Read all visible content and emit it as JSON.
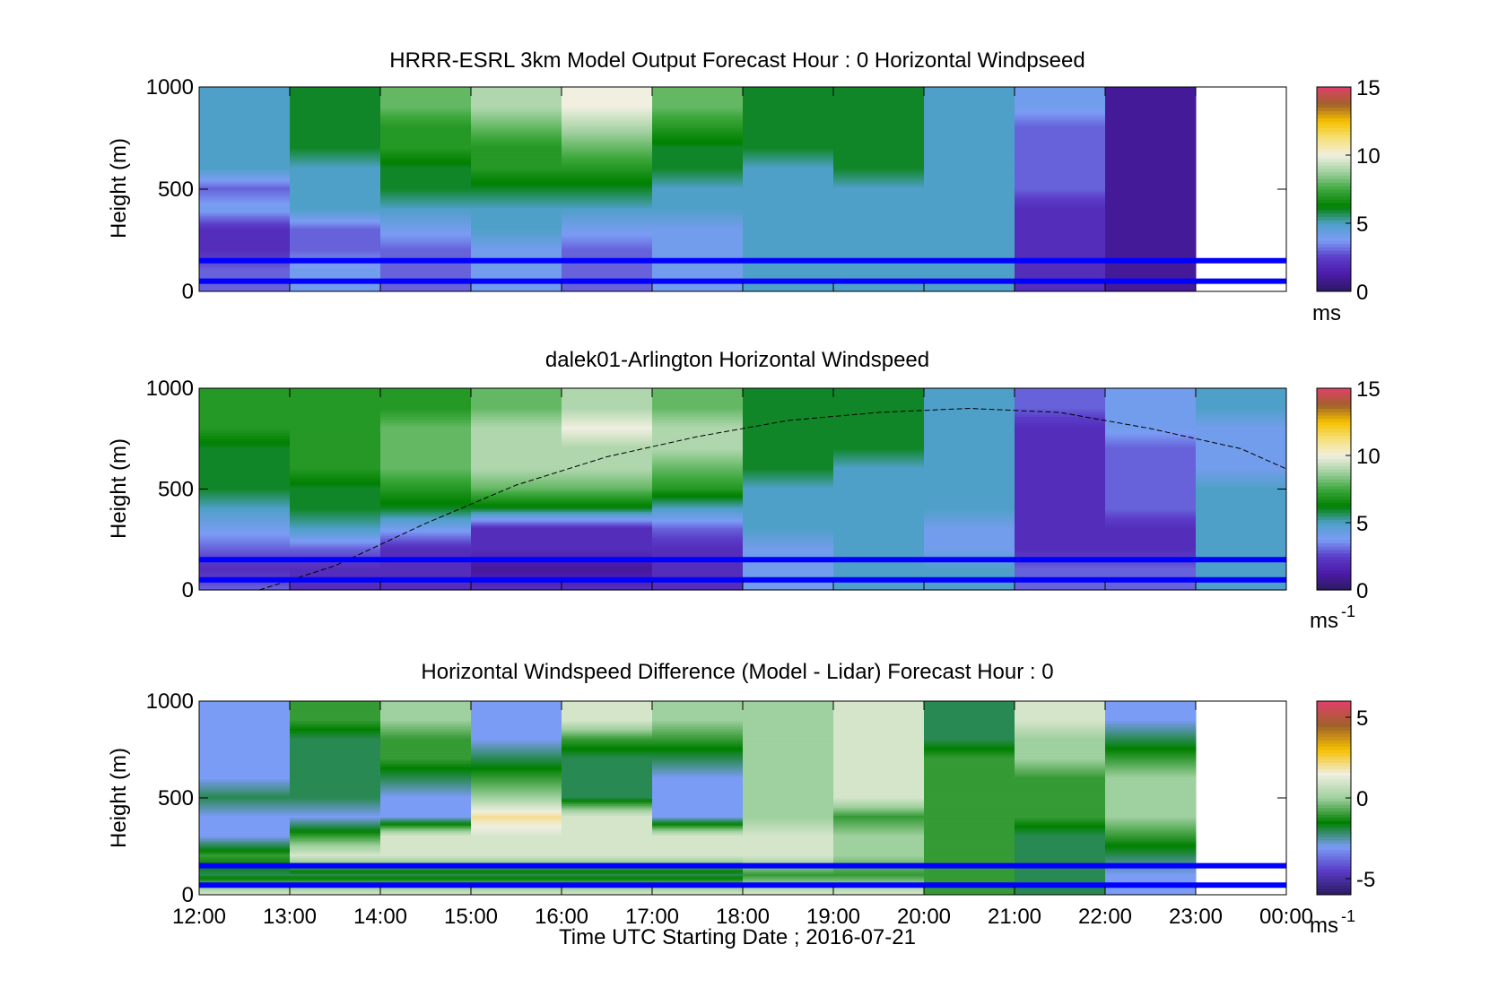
{
  "xlabel": "Time UTC  Starting Date ; 2016-07-21",
  "x_ticks": [
    "12:00",
    "13:00",
    "14:00",
    "15:00",
    "16:00",
    "17:00",
    "18:00",
    "19:00",
    "20:00",
    "21:00",
    "22:00",
    "23:00",
    "00:00"
  ],
  "colors": {
    "reference_lines": "#0000ff",
    "colormap_speed": [
      "#2a1a5e",
      "#4b1aa8",
      "#5a3cc8",
      "#7b9cf5",
      "#4fa0c8",
      "#008000",
      "#3da83d",
      "#9fd09f",
      "#f0efe0",
      "#f5e07a",
      "#f5c000",
      "#a0622a",
      "#e0406a"
    ],
    "colormap_diff": [
      "#2a1a5e",
      "#5a3cc8",
      "#7b9cf5",
      "#008000",
      "#9fd09f",
      "#f0efe0",
      "#f5c000",
      "#a0622a",
      "#e0406a"
    ]
  },
  "chart_data": [
    {
      "type": "heatmap",
      "title": "HRRR-ESRL 3km Model Output   Forecast Hour : 0 Horizontal Windpseed",
      "ylabel": "Height (m)",
      "xlim": [
        "12:00",
        "00:00"
      ],
      "ylim": [
        0,
        1000
      ],
      "y_ticks": [
        "0",
        "500",
        "1000"
      ],
      "colorbar": {
        "min": 0,
        "max": 15,
        "ticks": [
          "0",
          "5",
          "10",
          "15"
        ],
        "unit": "ms"
      },
      "reference_lines_m": [
        50,
        150
      ],
      "columns": [
        {
          "start": "12:00",
          "end": "13:00",
          "profile_ms": [
            3,
            3,
            2,
            2,
            4,
            3,
            5,
            5,
            5,
            5
          ]
        },
        {
          "start": "13:00",
          "end": "14:00",
          "profile_ms": [
            4,
            4,
            3,
            3,
            5,
            5,
            5,
            6,
            6,
            6
          ]
        },
        {
          "start": "14:00",
          "end": "15:00",
          "profile_ms": [
            3,
            3,
            3,
            4,
            5,
            6,
            6,
            7,
            7,
            8
          ]
        },
        {
          "start": "15:00",
          "end": "16:00",
          "profile_ms": [
            4,
            4,
            4,
            5,
            5,
            6,
            7,
            7,
            8,
            9
          ]
        },
        {
          "start": "16:00",
          "end": "17:00",
          "profile_ms": [
            3,
            3,
            3,
            4,
            5,
            6,
            7,
            8,
            9,
            10
          ]
        },
        {
          "start": "17:00",
          "end": "18:00",
          "profile_ms": [
            4,
            4,
            4,
            4,
            5,
            5,
            6,
            6,
            7,
            8
          ]
        },
        {
          "start": "18:00",
          "end": "19:00",
          "profile_ms": [
            5,
            5,
            5,
            5,
            5,
            5,
            5,
            6,
            6,
            6
          ]
        },
        {
          "start": "19:00",
          "end": "20:00",
          "profile_ms": [
            5,
            5,
            5,
            5,
            5,
            5,
            6,
            6,
            6,
            6
          ]
        },
        {
          "start": "20:00",
          "end": "21:00",
          "profile_ms": [
            5,
            5,
            5,
            5,
            5,
            5,
            5,
            5,
            5,
            5
          ]
        },
        {
          "start": "21:00",
          "end": "22:00",
          "profile_ms": [
            2,
            2,
            2,
            2,
            2,
            3,
            3,
            3,
            3,
            4
          ]
        },
        {
          "start": "22:00",
          "end": "23:00",
          "profile_ms": [
            1,
            1,
            1,
            1,
            1,
            1,
            1,
            1,
            1,
            1
          ]
        }
      ]
    },
    {
      "type": "heatmap",
      "title": "dalek01-Arlington  Horizontal Windspeed",
      "ylabel": "Height (m)",
      "xlim": [
        "12:00",
        "00:00"
      ],
      "ylim": [
        0,
        1000
      ],
      "y_ticks": [
        "0",
        "500",
        "1000"
      ],
      "colorbar": {
        "min": 0,
        "max": 15,
        "ticks": [
          "0",
          "5",
          "10",
          "15"
        ],
        "unit": "ms",
        "unit_exp": "-1"
      },
      "reference_lines_m": [
        50,
        150
      ],
      "overlay_curve_m": [
        {
          "t": "12:40",
          "z": 0
        },
        {
          "t": "13:30",
          "z": 120
        },
        {
          "t": "14:30",
          "z": 330
        },
        {
          "t": "15:30",
          "z": 520
        },
        {
          "t": "16:30",
          "z": 660
        },
        {
          "t": "17:30",
          "z": 760
        },
        {
          "t": "18:30",
          "z": 840
        },
        {
          "t": "19:30",
          "z": 880
        },
        {
          "t": "20:30",
          "z": 900
        },
        {
          "t": "21:30",
          "z": 880
        },
        {
          "t": "22:30",
          "z": 800
        },
        {
          "t": "23:30",
          "z": 700
        },
        {
          "t": "00:00",
          "z": 600
        }
      ],
      "columns": [
        {
          "start": "12:00",
          "end": "13:00",
          "profile_ms": [
            3,
            2,
            3,
            4,
            5,
            6,
            6,
            6,
            7,
            7
          ]
        },
        {
          "start": "13:00",
          "end": "14:00",
          "profile_ms": [
            2,
            2,
            3,
            5,
            6,
            6,
            7,
            7,
            7,
            7
          ]
        },
        {
          "start": "14:00",
          "end": "15:00",
          "profile_ms": [
            2,
            2,
            2,
            4,
            6,
            7,
            8,
            8,
            8,
            7
          ]
        },
        {
          "start": "15:00",
          "end": "16:00",
          "profile_ms": [
            2,
            1,
            2,
            2,
            6,
            8,
            9,
            9,
            9,
            8
          ]
        },
        {
          "start": "16:00",
          "end": "17:00",
          "profile_ms": [
            2,
            1,
            2,
            2,
            6,
            8,
            9,
            9,
            10,
            9
          ]
        },
        {
          "start": "17:00",
          "end": "18:00",
          "profile_ms": [
            2,
            2,
            2,
            3,
            5,
            7,
            8,
            9,
            9,
            8
          ]
        },
        {
          "start": "18:00",
          "end": "19:00",
          "profile_ms": [
            4,
            4,
            4,
            5,
            5,
            5,
            6,
            6,
            6,
            6
          ]
        },
        {
          "start": "19:00",
          "end": "20:00",
          "profile_ms": [
            5,
            5,
            5,
            5,
            5,
            5,
            5,
            6,
            6,
            6
          ]
        },
        {
          "start": "20:00",
          "end": "21:00",
          "profile_ms": [
            5,
            5,
            4,
            4,
            5,
            5,
            5,
            5,
            5,
            5
          ]
        },
        {
          "start": "21:00",
          "end": "22:00",
          "profile_ms": [
            3,
            3,
            2,
            2,
            2,
            2,
            2,
            2,
            2,
            3
          ]
        },
        {
          "start": "22:00",
          "end": "23:00",
          "profile_ms": [
            3,
            3,
            2,
            2,
            3,
            3,
            3,
            3,
            4,
            4
          ]
        },
        {
          "start": "23:00",
          "end": "00:00",
          "profile_ms": [
            5,
            5,
            5,
            5,
            5,
            5,
            4,
            4,
            4,
            5
          ]
        }
      ]
    },
    {
      "type": "heatmap",
      "title": "Horizontal Windspeed Difference (Model - Lidar) Forecast Hour : 0",
      "ylabel": "Height (m)",
      "xlim": [
        "12:00",
        "00:00"
      ],
      "ylim": [
        0,
        1000
      ],
      "y_ticks": [
        "0",
        "500",
        "1000"
      ],
      "colorbar": {
        "min": -6,
        "max": 6,
        "ticks": [
          "-5",
          "0",
          "5"
        ],
        "unit": "ms",
        "unit_exp": "-1"
      },
      "reference_lines_m": [
        50,
        150
      ],
      "columns": [
        {
          "start": "12:00",
          "end": "13:00",
          "profile_ms": [
            1,
            -2,
            -1,
            -3,
            -3,
            -2,
            -3,
            -3,
            -3,
            -3
          ]
        },
        {
          "start": "13:00",
          "end": "14:00",
          "profile_ms": [
            1,
            -2,
            1,
            -1,
            -3,
            -2,
            -2,
            -2,
            -2,
            -1
          ]
        },
        {
          "start": "14:00",
          "end": "15:00",
          "profile_ms": [
            1,
            -2,
            1,
            1,
            -3,
            -3,
            -2,
            -1,
            -1,
            0
          ]
        },
        {
          "start": "15:00",
          "end": "16:00",
          "profile_ms": [
            1,
            -2,
            1,
            1,
            2,
            0,
            -1,
            -2,
            -3,
            -3
          ]
        },
        {
          "start": "16:00",
          "end": "17:00",
          "profile_ms": [
            1,
            -2,
            1,
            1,
            1,
            -2,
            -2,
            -2,
            -1,
            1
          ]
        },
        {
          "start": "17:00",
          "end": "18:00",
          "profile_ms": [
            1,
            -2,
            1,
            1,
            -3,
            -3,
            -3,
            -2,
            -1,
            0
          ]
        },
        {
          "start": "18:00",
          "end": "19:00",
          "profile_ms": [
            1,
            -1,
            1,
            1,
            0,
            0,
            0,
            0,
            0,
            0
          ]
        },
        {
          "start": "19:00",
          "end": "20:00",
          "profile_ms": [
            1,
            -1,
            0,
            0,
            -1,
            1,
            1,
            1,
            1,
            1
          ]
        },
        {
          "start": "20:00",
          "end": "21:00",
          "profile_ms": [
            -1,
            -1,
            -1,
            -1,
            -1,
            -1,
            -1,
            -1,
            -2,
            -2
          ]
        },
        {
          "start": "21:00",
          "end": "22:00",
          "profile_ms": [
            -2,
            -2,
            -2,
            -2,
            -1,
            -1,
            -1,
            0,
            0,
            1
          ]
        },
        {
          "start": "22:00",
          "end": "23:00",
          "profile_ms": [
            -3,
            -3,
            -2,
            -1,
            0,
            0,
            0,
            -1,
            -2,
            -3
          ]
        }
      ]
    }
  ]
}
